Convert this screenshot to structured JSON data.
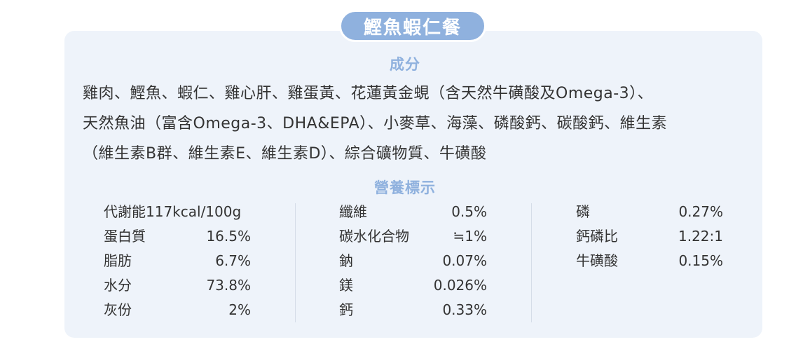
{
  "title": "鰹魚蝦仁餐",
  "ingredients": {
    "heading": "成分",
    "lines": [
      "雞肉、鰹魚、蝦仁、雞心肝、雞蛋黃、花蓮黃金蜆（含天然牛磺酸及Omega-3）、",
      "天然魚油（富含Omega-3、DHA&EPA）、小麥草、海藻、磷酸鈣、碳酸鈣、維生素",
      "（維生素B群、維生素E、維生素D）、綜合礦物質、牛磺酸"
    ]
  },
  "nutrition": {
    "heading": "營養標示",
    "columns": [
      [
        {
          "label": "代謝能117kcal/100g",
          "value": ""
        },
        {
          "label": "蛋白質",
          "value": "16.5%"
        },
        {
          "label": "脂肪",
          "value": "6.7%"
        },
        {
          "label": "水分",
          "value": "73.8%"
        },
        {
          "label": "灰份",
          "value": "2%"
        }
      ],
      [
        {
          "label": "纖維",
          "value": "0.5%"
        },
        {
          "label": "碳水化合物",
          "value": "≒1%"
        },
        {
          "label": "鈉",
          "value": "0.07%"
        },
        {
          "label": "鎂",
          "value": "0.026%"
        },
        {
          "label": "鈣",
          "value": "0.33%"
        }
      ],
      [
        {
          "label": "磷",
          "value": "0.27%"
        },
        {
          "label": "鈣磷比",
          "value": "1.22:1"
        },
        {
          "label": "牛磺酸",
          "value": "0.15%"
        }
      ]
    ]
  }
}
